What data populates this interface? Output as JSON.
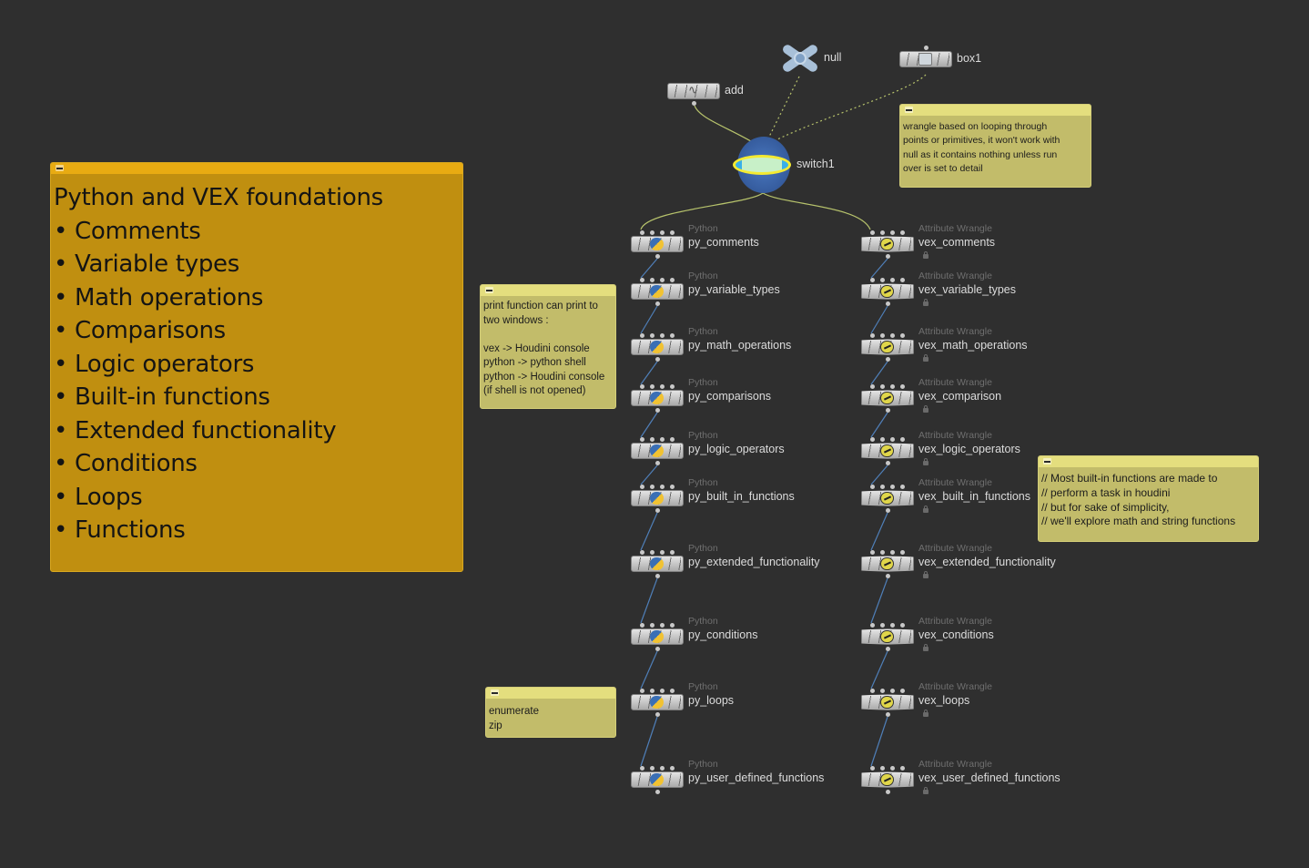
{
  "main_note": {
    "text": "Python and VEX foundations\n• Comments\n• Variable types\n• Math operations\n• Comparisons\n• Logic operators\n• Built-in functions\n• Extended functionality\n• Conditions\n• Loops\n• Functions"
  },
  "print_note": {
    "text": "print function can print to\ntwo windows :\n\nvex -> Houdini console\npython -> python shell\npython -> Houdini console\n(if shell is not opened)"
  },
  "enum_note": {
    "text": "enumerate\nzip"
  },
  "wrangle_note": {
    "text": "wrangle based on looping through\npoints or primitives, it won't work with\nnull as it contains nothing unless run\nover is set to detail"
  },
  "builtin_note": {
    "text": "// Most built-in functions are made to\n// perform a task in houdini\n// but for sake of simplicity,\n// we'll explore math and string functions"
  },
  "top_nodes": {
    "add": "add",
    "null": "null",
    "box1": "box1",
    "switch1": "switch1"
  },
  "python_type": "Python",
  "wrangle_type": "Attribute Wrangle",
  "python_nodes": [
    "py_comments",
    "py_variable_types",
    "py_math_operations",
    "py_comparisons",
    "py_logic_operators",
    "py_built_in_functions",
    "py_extended_functionality",
    "py_conditions",
    "py_loops",
    "py_user_defined_functions"
  ],
  "vex_nodes": [
    "vex_comments",
    "vex_variable_types",
    "vex_math_operations",
    "vex_comparison",
    "vex_logic_operators",
    "vex_built_in_functions",
    "vex_extended_functionality",
    "vex_conditions",
    "vex_loops",
    "vex_user_defined_functions"
  ],
  "colors": {
    "background": "#2f2f2f",
    "main_note": "#c08f10",
    "yellow_note": "#c2bc6a",
    "wire_left": "#4f7fb8",
    "wire_top": "#b7c36c"
  }
}
